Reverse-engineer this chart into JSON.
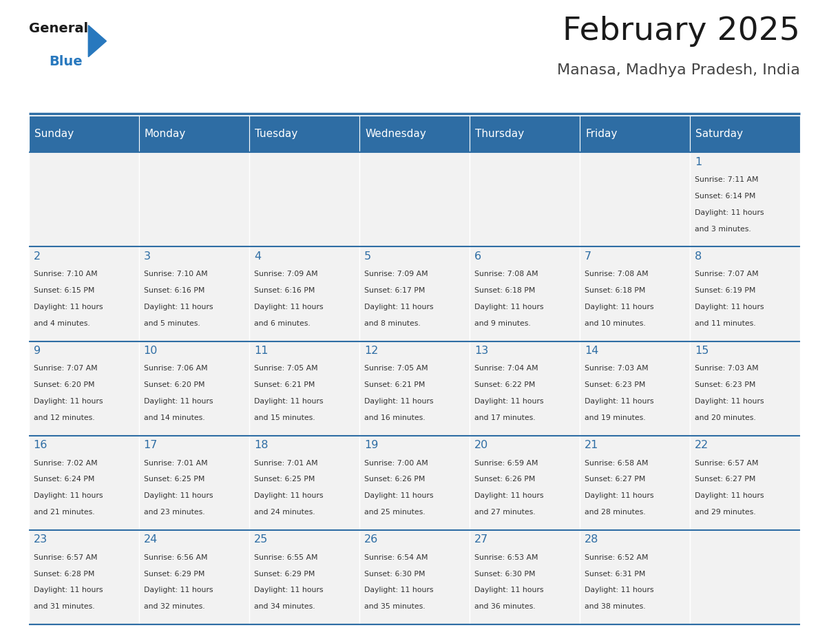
{
  "title": "February 2025",
  "subtitle": "Manasa, Madhya Pradesh, India",
  "header_bg": "#2E6DA4",
  "header_text_color": "#FFFFFF",
  "days_of_week": [
    "Sunday",
    "Monday",
    "Tuesday",
    "Wednesday",
    "Thursday",
    "Friday",
    "Saturday"
  ],
  "cell_bg": "#F2F2F2",
  "day_text_color": "#2E6DA4",
  "info_text_color": "#333333",
  "bg_color": "#FFFFFF",
  "logo_color_blue": "#2878BE",
  "logo_color_black": "#1A1A1A",
  "calendar_data": [
    [
      null,
      null,
      null,
      null,
      null,
      null,
      {
        "day": 1,
        "sunrise": "7:11 AM",
        "sunset": "6:14 PM",
        "daylight_line1": "11 hours",
        "daylight_line2": "and 3 minutes."
      }
    ],
    [
      {
        "day": 2,
        "sunrise": "7:10 AM",
        "sunset": "6:15 PM",
        "daylight_line1": "11 hours",
        "daylight_line2": "and 4 minutes."
      },
      {
        "day": 3,
        "sunrise": "7:10 AM",
        "sunset": "6:16 PM",
        "daylight_line1": "11 hours",
        "daylight_line2": "and 5 minutes."
      },
      {
        "day": 4,
        "sunrise": "7:09 AM",
        "sunset": "6:16 PM",
        "daylight_line1": "11 hours",
        "daylight_line2": "and 6 minutes."
      },
      {
        "day": 5,
        "sunrise": "7:09 AM",
        "sunset": "6:17 PM",
        "daylight_line1": "11 hours",
        "daylight_line2": "and 8 minutes."
      },
      {
        "day": 6,
        "sunrise": "7:08 AM",
        "sunset": "6:18 PM",
        "daylight_line1": "11 hours",
        "daylight_line2": "and 9 minutes."
      },
      {
        "day": 7,
        "sunrise": "7:08 AM",
        "sunset": "6:18 PM",
        "daylight_line1": "11 hours",
        "daylight_line2": "and 10 minutes."
      },
      {
        "day": 8,
        "sunrise": "7:07 AM",
        "sunset": "6:19 PM",
        "daylight_line1": "11 hours",
        "daylight_line2": "and 11 minutes."
      }
    ],
    [
      {
        "day": 9,
        "sunrise": "7:07 AM",
        "sunset": "6:20 PM",
        "daylight_line1": "11 hours",
        "daylight_line2": "and 12 minutes."
      },
      {
        "day": 10,
        "sunrise": "7:06 AM",
        "sunset": "6:20 PM",
        "daylight_line1": "11 hours",
        "daylight_line2": "and 14 minutes."
      },
      {
        "day": 11,
        "sunrise": "7:05 AM",
        "sunset": "6:21 PM",
        "daylight_line1": "11 hours",
        "daylight_line2": "and 15 minutes."
      },
      {
        "day": 12,
        "sunrise": "7:05 AM",
        "sunset": "6:21 PM",
        "daylight_line1": "11 hours",
        "daylight_line2": "and 16 minutes."
      },
      {
        "day": 13,
        "sunrise": "7:04 AM",
        "sunset": "6:22 PM",
        "daylight_line1": "11 hours",
        "daylight_line2": "and 17 minutes."
      },
      {
        "day": 14,
        "sunrise": "7:03 AM",
        "sunset": "6:23 PM",
        "daylight_line1": "11 hours",
        "daylight_line2": "and 19 minutes."
      },
      {
        "day": 15,
        "sunrise": "7:03 AM",
        "sunset": "6:23 PM",
        "daylight_line1": "11 hours",
        "daylight_line2": "and 20 minutes."
      }
    ],
    [
      {
        "day": 16,
        "sunrise": "7:02 AM",
        "sunset": "6:24 PM",
        "daylight_line1": "11 hours",
        "daylight_line2": "and 21 minutes."
      },
      {
        "day": 17,
        "sunrise": "7:01 AM",
        "sunset": "6:25 PM",
        "daylight_line1": "11 hours",
        "daylight_line2": "and 23 minutes."
      },
      {
        "day": 18,
        "sunrise": "7:01 AM",
        "sunset": "6:25 PM",
        "daylight_line1": "11 hours",
        "daylight_line2": "and 24 minutes."
      },
      {
        "day": 19,
        "sunrise": "7:00 AM",
        "sunset": "6:26 PM",
        "daylight_line1": "11 hours",
        "daylight_line2": "and 25 minutes."
      },
      {
        "day": 20,
        "sunrise": "6:59 AM",
        "sunset": "6:26 PM",
        "daylight_line1": "11 hours",
        "daylight_line2": "and 27 minutes."
      },
      {
        "day": 21,
        "sunrise": "6:58 AM",
        "sunset": "6:27 PM",
        "daylight_line1": "11 hours",
        "daylight_line2": "and 28 minutes."
      },
      {
        "day": 22,
        "sunrise": "6:57 AM",
        "sunset": "6:27 PM",
        "daylight_line1": "11 hours",
        "daylight_line2": "and 29 minutes."
      }
    ],
    [
      {
        "day": 23,
        "sunrise": "6:57 AM",
        "sunset": "6:28 PM",
        "daylight_line1": "11 hours",
        "daylight_line2": "and 31 minutes."
      },
      {
        "day": 24,
        "sunrise": "6:56 AM",
        "sunset": "6:29 PM",
        "daylight_line1": "11 hours",
        "daylight_line2": "and 32 minutes."
      },
      {
        "day": 25,
        "sunrise": "6:55 AM",
        "sunset": "6:29 PM",
        "daylight_line1": "11 hours",
        "daylight_line2": "and 34 minutes."
      },
      {
        "day": 26,
        "sunrise": "6:54 AM",
        "sunset": "6:30 PM",
        "daylight_line1": "11 hours",
        "daylight_line2": "and 35 minutes."
      },
      {
        "day": 27,
        "sunrise": "6:53 AM",
        "sunset": "6:30 PM",
        "daylight_line1": "11 hours",
        "daylight_line2": "and 36 minutes."
      },
      {
        "day": 28,
        "sunrise": "6:52 AM",
        "sunset": "6:31 PM",
        "daylight_line1": "11 hours",
        "daylight_line2": "and 38 minutes."
      },
      null
    ]
  ]
}
